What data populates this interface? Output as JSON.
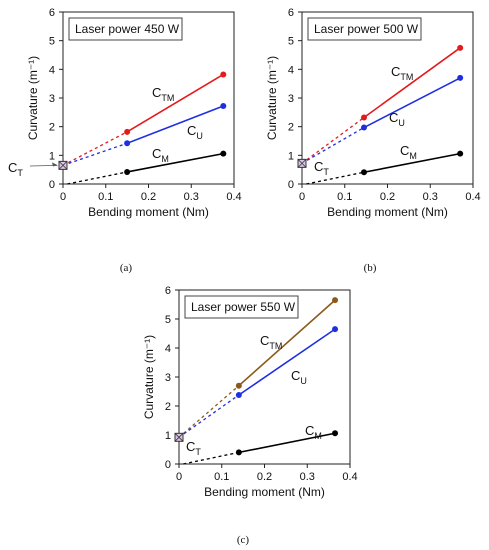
{
  "chart_data": [
    {
      "type": "line",
      "panel_label": "(a)",
      "legend_box": "Laser power 450 W",
      "xlabel": "Bending moment (Nm)",
      "ylabel": "Curvature (m⁻¹)",
      "xlim": [
        0,
        0.4
      ],
      "ylim": [
        0,
        6
      ],
      "xticks": [
        "0",
        "0.1",
        "0.2",
        "0.3",
        "0.4"
      ],
      "yticks": [
        "0",
        "1",
        "2",
        "3",
        "4",
        "5",
        "6"
      ],
      "ct_value": 0.65,
      "ct_label": "C",
      "ct_sub": "T",
      "series": [
        {
          "name": "C",
          "sub": "TM",
          "color": "#e41a1c",
          "x": [
            0.15,
            0.375
          ],
          "y": [
            1.82,
            3.82
          ]
        },
        {
          "name": "C",
          "sub": "U",
          "color": "#1f2fe0",
          "x": [
            0.15,
            0.375
          ],
          "y": [
            1.42,
            2.72
          ]
        },
        {
          "name": "C",
          "sub": "M",
          "color": "#000000",
          "x": [
            0.15,
            0.375
          ],
          "y": [
            0.42,
            1.06
          ]
        }
      ]
    },
    {
      "type": "line",
      "panel_label": "(b)",
      "legend_box": "Laser power 500 W",
      "xlabel": "Bending moment (Nm)",
      "ylabel": "Curvature (m⁻¹)",
      "xlim": [
        0,
        0.4
      ],
      "ylim": [
        0,
        6
      ],
      "xticks": [
        "0",
        "0.1",
        "0.2",
        "0.3",
        "0.4"
      ],
      "yticks": [
        "0",
        "1",
        "2",
        "3",
        "4",
        "5",
        "6"
      ],
      "ct_value": 0.72,
      "ct_label": "C",
      "ct_sub": "T",
      "series": [
        {
          "name": "C",
          "sub": "TM",
          "color": "#e41a1c",
          "x": [
            0.145,
            0.37
          ],
          "y": [
            2.32,
            4.75
          ]
        },
        {
          "name": "C",
          "sub": "U",
          "color": "#1f2fe0",
          "x": [
            0.145,
            0.37
          ],
          "y": [
            1.97,
            3.7
          ]
        },
        {
          "name": "C",
          "sub": "M",
          "color": "#000000",
          "x": [
            0.145,
            0.37
          ],
          "y": [
            0.41,
            1.06
          ]
        }
      ]
    },
    {
      "type": "line",
      "panel_label": "(c)",
      "legend_box": "Laser power 550 W",
      "xlabel": "Bending moment (Nm)",
      "ylabel": "Curvature (m⁻¹)",
      "xlim": [
        0,
        0.4
      ],
      "ylim": [
        0,
        6
      ],
      "xticks": [
        "0",
        "0.1",
        "0.2",
        "0.3",
        "0.4"
      ],
      "yticks": [
        "0",
        "1",
        "2",
        "3",
        "4",
        "5",
        "6"
      ],
      "ct_value": 0.92,
      "ct_label": "C",
      "ct_sub": "T",
      "series": [
        {
          "name": "C",
          "sub": "TM",
          "color": "#8b5a1a",
          "x": [
            0.14,
            0.365
          ],
          "y": [
            2.7,
            5.65
          ]
        },
        {
          "name": "C",
          "sub": "U",
          "color": "#1f2fe0",
          "x": [
            0.14,
            0.365
          ],
          "y": [
            2.38,
            4.65
          ]
        },
        {
          "name": "C",
          "sub": "M",
          "color": "#000000",
          "x": [
            0.14,
            0.365
          ],
          "y": [
            0.4,
            1.06
          ]
        }
      ]
    }
  ]
}
